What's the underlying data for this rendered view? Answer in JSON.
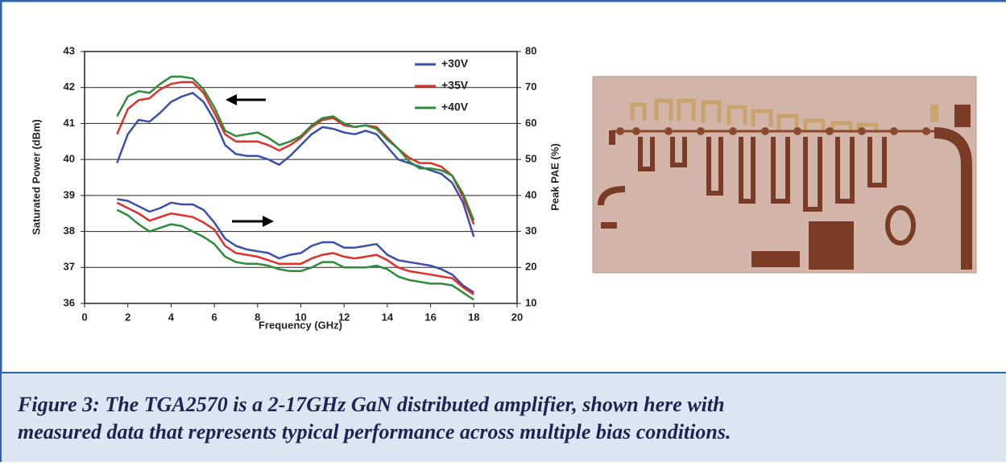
{
  "chart_data": {
    "type": "line",
    "x_label": "Frequency (GHz)",
    "y_label": "Saturated Power (dBm)",
    "y2_label": "Peak PAE (%)",
    "x": [
      1.5,
      2,
      2.5,
      3,
      3.5,
      4,
      4.5,
      5,
      5.5,
      6,
      6.5,
      7,
      7.5,
      8,
      8.5,
      9,
      9.5,
      10,
      10.5,
      11,
      11.5,
      12,
      12.5,
      13,
      13.5,
      14,
      14.5,
      15,
      15.5,
      16,
      16.5,
      17,
      17.5,
      18
    ],
    "series": [
      {
        "name": "+30V",
        "color": "#3a4fa8",
        "values": [
          39.9,
          40.7,
          41.1,
          41.05,
          41.3,
          41.6,
          41.75,
          41.85,
          41.6,
          41.1,
          40.4,
          40.15,
          40.1,
          40.1,
          40.0,
          39.85,
          40.1,
          40.4,
          40.7,
          40.9,
          40.85,
          40.75,
          40.7,
          40.8,
          40.7,
          40.35,
          40.0,
          39.9,
          39.8,
          39.7,
          39.6,
          39.35,
          38.8,
          37.85
        ]
      },
      {
        "name": "+35V",
        "color": "#e0302a",
        "values": [
          40.7,
          41.4,
          41.65,
          41.7,
          41.95,
          42.1,
          42.15,
          42.15,
          41.85,
          41.3,
          40.7,
          40.5,
          40.5,
          40.5,
          40.4,
          40.25,
          40.4,
          40.6,
          40.9,
          41.1,
          41.15,
          40.95,
          40.9,
          40.95,
          40.9,
          40.6,
          40.3,
          40.05,
          39.9,
          39.9,
          39.8,
          39.55,
          38.95,
          38.2
        ]
      },
      {
        "name": "+40V",
        "color": "#2e8b3a",
        "values": [
          41.2,
          41.75,
          41.9,
          41.85,
          42.1,
          42.3,
          42.3,
          42.25,
          41.95,
          41.45,
          40.8,
          40.65,
          40.7,
          40.75,
          40.6,
          40.4,
          40.5,
          40.65,
          40.95,
          41.15,
          41.2,
          41.0,
          40.9,
          40.95,
          40.85,
          40.55,
          40.3,
          39.95,
          39.75,
          39.75,
          39.7,
          39.55,
          39.05,
          38.3
        ]
      },
      {
        "color": "#3a4fa8",
        "axis": "y2",
        "values": [
          39,
          38.5,
          37,
          35.5,
          36.5,
          38,
          37.5,
          37.5,
          36,
          32.5,
          28,
          26,
          25,
          24.5,
          24,
          22.5,
          23.5,
          24,
          26,
          27,
          27,
          25.5,
          25.5,
          26,
          26.5,
          23.5,
          22,
          21.5,
          21,
          20.5,
          19.5,
          18,
          15,
          13
        ]
      },
      {
        "color": "#e0302a",
        "axis": "y2",
        "values": [
          38,
          36.5,
          35,
          33,
          34,
          35,
          34.5,
          34,
          32.5,
          30.5,
          26,
          24,
          23.5,
          23,
          22,
          21,
          21,
          21,
          22.5,
          23.5,
          24,
          23,
          22.5,
          23,
          23.5,
          22,
          20,
          19,
          18.5,
          18,
          17.5,
          17,
          14.5,
          12.5
        ]
      },
      {
        "color": "#2e8b3a",
        "axis": "y2",
        "values": [
          36,
          34.5,
          32,
          30,
          31,
          32,
          31.5,
          30,
          28.5,
          26.5,
          23,
          21.5,
          21,
          21,
          20.5,
          19.5,
          19,
          19,
          20,
          21.5,
          21.5,
          20,
          20,
          20,
          20.5,
          19.5,
          17.5,
          16.5,
          16,
          15.5,
          15.5,
          15,
          13,
          11
        ]
      }
    ],
    "xlim": [
      0,
      20
    ],
    "xticks": [
      0,
      2,
      4,
      6,
      8,
      10,
      12,
      14,
      16,
      18,
      20
    ],
    "ylim": [
      36,
      43
    ],
    "yticks": [
      36,
      37,
      38,
      39,
      40,
      41,
      42,
      43
    ],
    "y2lim": [
      10,
      80
    ],
    "y2ticks": [
      10,
      20,
      30,
      40,
      50,
      60,
      70,
      80
    ],
    "grid": true,
    "legend": "upper right"
  },
  "caption": {
    "lines": [
      "Figure 3: The TGA2570 is a 2-17GHz GaN distributed amplifier, shown here with",
      "measured data that represents typical performance across multiple bias conditions."
    ]
  }
}
